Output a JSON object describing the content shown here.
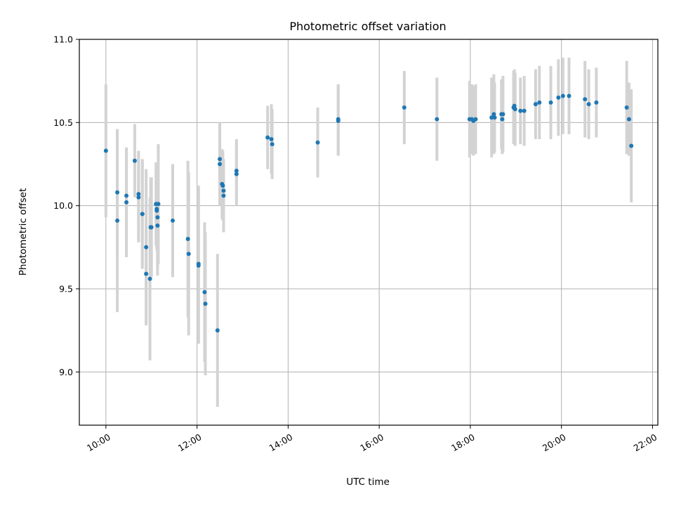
{
  "chart_data": {
    "type": "scatter",
    "title": "Photometric offset variation",
    "xlabel": "UTC time",
    "ylabel": "Photometric offset",
    "xlim": [
      "09:25",
      "22:07"
    ],
    "ylim": [
      8.68,
      11.0
    ],
    "grid": true,
    "x_ticks": [
      "10:00",
      "12:00",
      "14:00",
      "16:00",
      "18:00",
      "20:00",
      "22:00"
    ],
    "y_ticks": [
      9.0,
      9.5,
      10.0,
      10.5,
      11.0
    ],
    "y_tick_labels": [
      "9.0",
      "9.5",
      "10.0",
      "10.5",
      "11.0"
    ],
    "colors": {
      "points": "#1f77b4",
      "errorbars": "#d3d3d3",
      "grid": "#b0b0b0"
    },
    "series": [
      {
        "x": [
          "10:00",
          "10:15",
          "10:15",
          "10:27",
          "10:27",
          "10:38",
          "10:43",
          "10:43",
          "10:48",
          "10:48",
          "10:53",
          "10:53",
          "10:58",
          "10:59",
          "10:59",
          "11:00",
          "11:06",
          "11:07",
          "11:07",
          "11:08",
          "11:08",
          "11:09",
          "11:28",
          "11:48",
          "11:49",
          "12:02",
          "12:02",
          "12:10",
          "12:11",
          "12:27",
          "12:30",
          "12:30",
          "12:33",
          "12:34",
          "12:35",
          "12:35",
          "12:52",
          "12:52",
          "13:33",
          "13:38",
          "13:39",
          "14:39",
          "15:06",
          "15:06",
          "16:33",
          "17:16",
          "17:59",
          "18:02",
          "18:04",
          "18:07",
          "18:28",
          "18:31",
          "18:32",
          "18:41",
          "18:42",
          "18:43",
          "18:57",
          "18:58",
          "18:59",
          "19:06",
          "19:11",
          "19:26",
          "19:31",
          "19:46",
          "19:56",
          "20:02",
          "20:10",
          "20:31",
          "20:36",
          "20:46",
          "21:26",
          "21:29",
          "21:32"
        ],
        "y": [
          10.33,
          10.08,
          9.91,
          10.02,
          10.06,
          10.27,
          10.07,
          10.05,
          9.95,
          9.95,
          9.75,
          9.59,
          9.56,
          9.87,
          9.87,
          9.87,
          10.01,
          9.98,
          9.97,
          9.93,
          9.88,
          10.01,
          9.91,
          9.8,
          9.71,
          9.64,
          9.65,
          9.48,
          9.41,
          9.25,
          10.28,
          10.25,
          10.13,
          10.12,
          10.09,
          10.06,
          10.21,
          10.19,
          10.41,
          10.4,
          10.37,
          10.38,
          10.52,
          10.51,
          10.59,
          10.52,
          10.52,
          10.52,
          10.51,
          10.52,
          10.53,
          10.55,
          10.53,
          10.55,
          10.52,
          10.55,
          10.59,
          10.6,
          10.58,
          10.57,
          10.57,
          10.61,
          10.62,
          10.62,
          10.65,
          10.66,
          10.66,
          10.64,
          10.61,
          10.62,
          10.59,
          10.52,
          10.36
        ],
        "y_err": [
          0.4,
          0.38,
          0.55,
          0.33,
          0.29,
          0.22,
          0.26,
          0.27,
          0.31,
          0.33,
          0.47,
          0.3,
          0.49,
          0.3,
          0.27,
          0.3,
          0.25,
          0.2,
          0.24,
          0.3,
          0.3,
          0.36,
          0.34,
          0.47,
          0.49,
          0.47,
          0.47,
          0.42,
          0.43,
          0.46,
          0.22,
          0.25,
          0.21,
          0.21,
          0.18,
          0.22,
          0.19,
          0.19,
          0.19,
          0.21,
          0.21,
          0.21,
          0.21,
          0.21,
          0.22,
          0.25,
          0.23,
          0.21,
          0.21,
          0.21,
          0.24,
          0.24,
          0.21,
          0.21,
          0.21,
          0.23,
          0.22,
          0.22,
          0.22,
          0.2,
          0.21,
          0.21,
          0.22,
          0.22,
          0.23,
          0.23,
          0.23,
          0.23,
          0.21,
          0.21,
          0.28,
          0.22,
          0.34
        ]
      }
    ]
  }
}
